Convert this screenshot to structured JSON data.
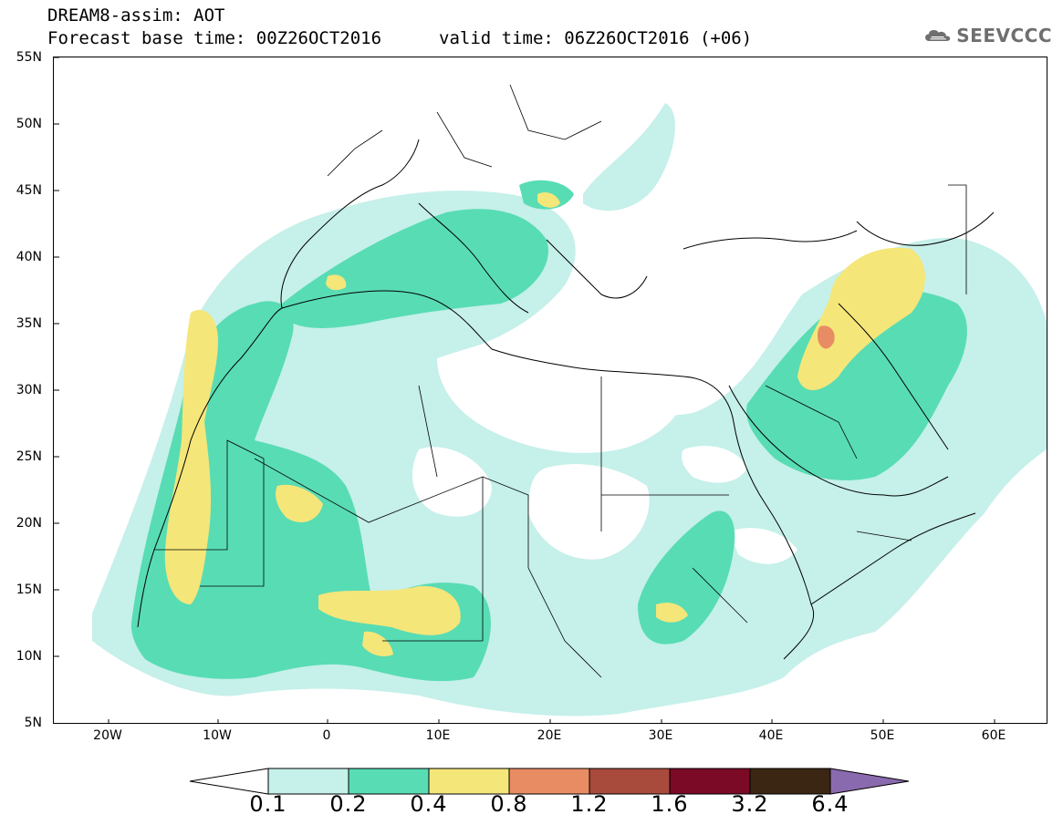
{
  "header": {
    "title": "DREAM8-assim: AOT",
    "forecast": "Forecast base time: 00Z26OCT2016",
    "valid": "valid time: 06Z26OCT2016 (+06)"
  },
  "logo": {
    "text": "SEEVCCC",
    "icon": "cloud-icon",
    "color": "#6f6f6f"
  },
  "map": {
    "lat_labels": [
      "55N",
      "50N",
      "45N",
      "40N",
      "35N",
      "30N",
      "25N",
      "20N",
      "15N",
      "10N",
      "5N"
    ],
    "lon_labels": [
      "20W",
      "10W",
      "0",
      "10E",
      "20E",
      "30E",
      "40E",
      "50E",
      "60E"
    ],
    "extent": {
      "lon_min": -25,
      "lon_max": 65,
      "lat_min": 5,
      "lat_max": 55
    }
  },
  "colorbar": {
    "levels": [
      "0.1",
      "0.2",
      "0.4",
      "0.8",
      "1.2",
      "1.6",
      "3.2",
      "6.4"
    ],
    "colors": [
      "#ffffff",
      "#c6f0ea",
      "#58dcb4",
      "#f5e67a",
      "#e88c64",
      "#a84a3c",
      "#7a0a26",
      "#3a2612",
      "#8a6aae"
    ]
  }
}
